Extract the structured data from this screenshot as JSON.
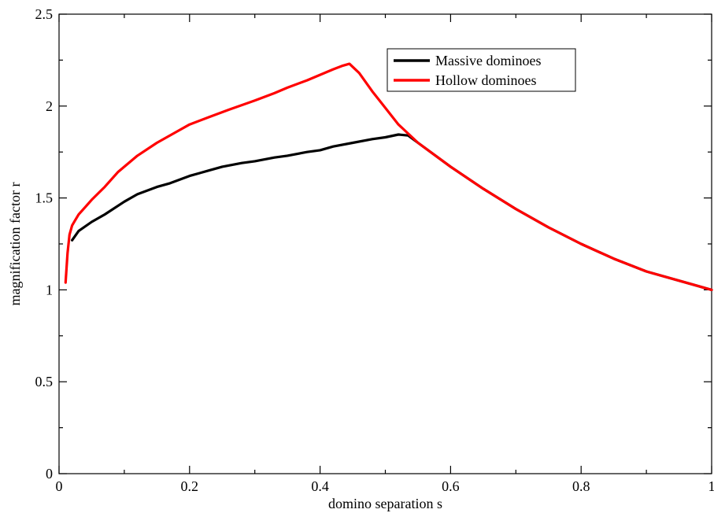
{
  "chart_data": {
    "type": "line",
    "title": "",
    "xlabel": "domino separation s",
    "ylabel": "magnification factor r",
    "xlim": [
      0,
      1
    ],
    "ylim": [
      0,
      2.5
    ],
    "xticks": [
      0,
      0.2,
      0.4,
      0.6,
      0.8,
      1
    ],
    "xtick_labels": [
      "0",
      "0.2",
      "0.4",
      "0.6",
      "0.8",
      "1"
    ],
    "yticks": [
      0,
      0.5,
      1,
      1.5,
      2,
      2.5
    ],
    "ytick_labels": [
      "0",
      "0.5",
      "1",
      "1.5",
      "2",
      "2.5"
    ],
    "grid": false,
    "legend_position": "top-right",
    "series": [
      {
        "name": "Massive dominoes",
        "color": "#000000",
        "x": [
          0.02,
          0.03,
          0.05,
          0.07,
          0.1,
          0.12,
          0.15,
          0.17,
          0.2,
          0.23,
          0.25,
          0.28,
          0.3,
          0.33,
          0.35,
          0.38,
          0.4,
          0.42,
          0.45,
          0.48,
          0.5,
          0.52,
          0.535,
          0.55,
          0.6,
          0.65,
          0.7,
          0.75,
          0.8,
          0.85,
          0.9,
          0.95,
          1.0
        ],
        "y": [
          1.27,
          1.32,
          1.37,
          1.41,
          1.48,
          1.52,
          1.56,
          1.58,
          1.62,
          1.65,
          1.67,
          1.69,
          1.7,
          1.72,
          1.73,
          1.75,
          1.76,
          1.78,
          1.8,
          1.82,
          1.83,
          1.845,
          1.84,
          1.8,
          1.67,
          1.55,
          1.44,
          1.34,
          1.25,
          1.17,
          1.1,
          1.05,
          1.0
        ]
      },
      {
        "name": "Hollow dominoes",
        "color": "#ff0000",
        "x": [
          0.01,
          0.013,
          0.016,
          0.02,
          0.025,
          0.03,
          0.04,
          0.05,
          0.07,
          0.09,
          0.12,
          0.15,
          0.18,
          0.2,
          0.23,
          0.26,
          0.3,
          0.33,
          0.35,
          0.38,
          0.4,
          0.42,
          0.435,
          0.445,
          0.46,
          0.48,
          0.5,
          0.52,
          0.55,
          0.6,
          0.65,
          0.7,
          0.75,
          0.8,
          0.85,
          0.9,
          0.95,
          1.0
        ],
        "y": [
          1.04,
          1.2,
          1.3,
          1.35,
          1.38,
          1.41,
          1.45,
          1.49,
          1.56,
          1.64,
          1.73,
          1.8,
          1.86,
          1.9,
          1.94,
          1.98,
          2.03,
          2.07,
          2.1,
          2.14,
          2.17,
          2.2,
          2.22,
          2.23,
          2.18,
          2.08,
          1.99,
          1.9,
          1.8,
          1.67,
          1.55,
          1.44,
          1.34,
          1.25,
          1.17,
          1.1,
          1.05,
          1.0
        ]
      }
    ]
  }
}
